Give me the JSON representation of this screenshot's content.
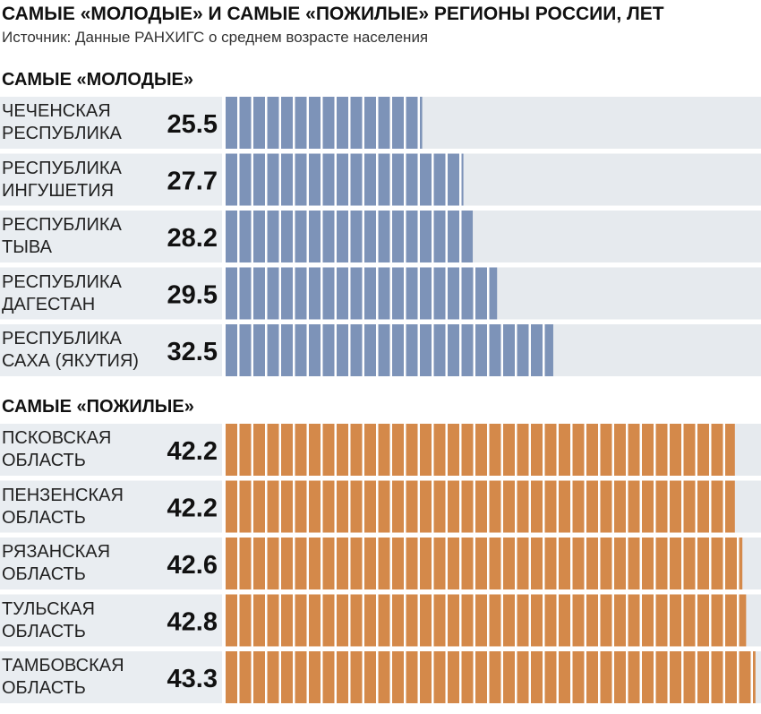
{
  "header": {
    "title": "САМЫЕ «МОЛОДЫЕ» И САМЫЕ «ПОЖИЛЫЕ» РЕГИОНЫ РОССИИ, ЛЕТ",
    "subtitle": "Источник: Данные РАНХИГС о среднем возрасте населения"
  },
  "chart_data": [
    {
      "type": "bar",
      "orientation": "horizontal",
      "title": "САМЫЕ «МОЛОДЫЕ»",
      "categories": [
        "ЧЕЧЕНСКАЯ\nРЕСПУБЛИКА",
        "РЕСПУБЛИКА\nИНГУШЕТИЯ",
        "РЕСПУБЛИКА\nТЫВА",
        "РЕСПУБЛИКА\nДАГЕСТАН",
        "РЕСПУБЛИКА\nСАХА (ЯКУТИЯ)"
      ],
      "values": [
        25.5,
        27.7,
        28.2,
        29.5,
        32.5
      ],
      "color": "#7d93b8",
      "xlim": [
        15,
        43.5
      ]
    },
    {
      "type": "bar",
      "orientation": "horizontal",
      "title": "САМЫЕ «ПОЖИЛЫЕ»",
      "categories": [
        "ПСКОВСКАЯ\nОБЛАСТЬ",
        "ПЕНЗЕНСКАЯ\nОБЛАСТЬ",
        "РЯЗАНСКАЯ\nОБЛАСТЬ",
        "ТУЛЬСКАЯ\nОБЛАСТЬ",
        "ТАМБОВСКАЯ\nОБЛАСТЬ"
      ],
      "values": [
        42.2,
        42.2,
        42.6,
        42.8,
        43.3
      ],
      "color": "#d4894a",
      "xlim": [
        15,
        43.5
      ]
    }
  ]
}
